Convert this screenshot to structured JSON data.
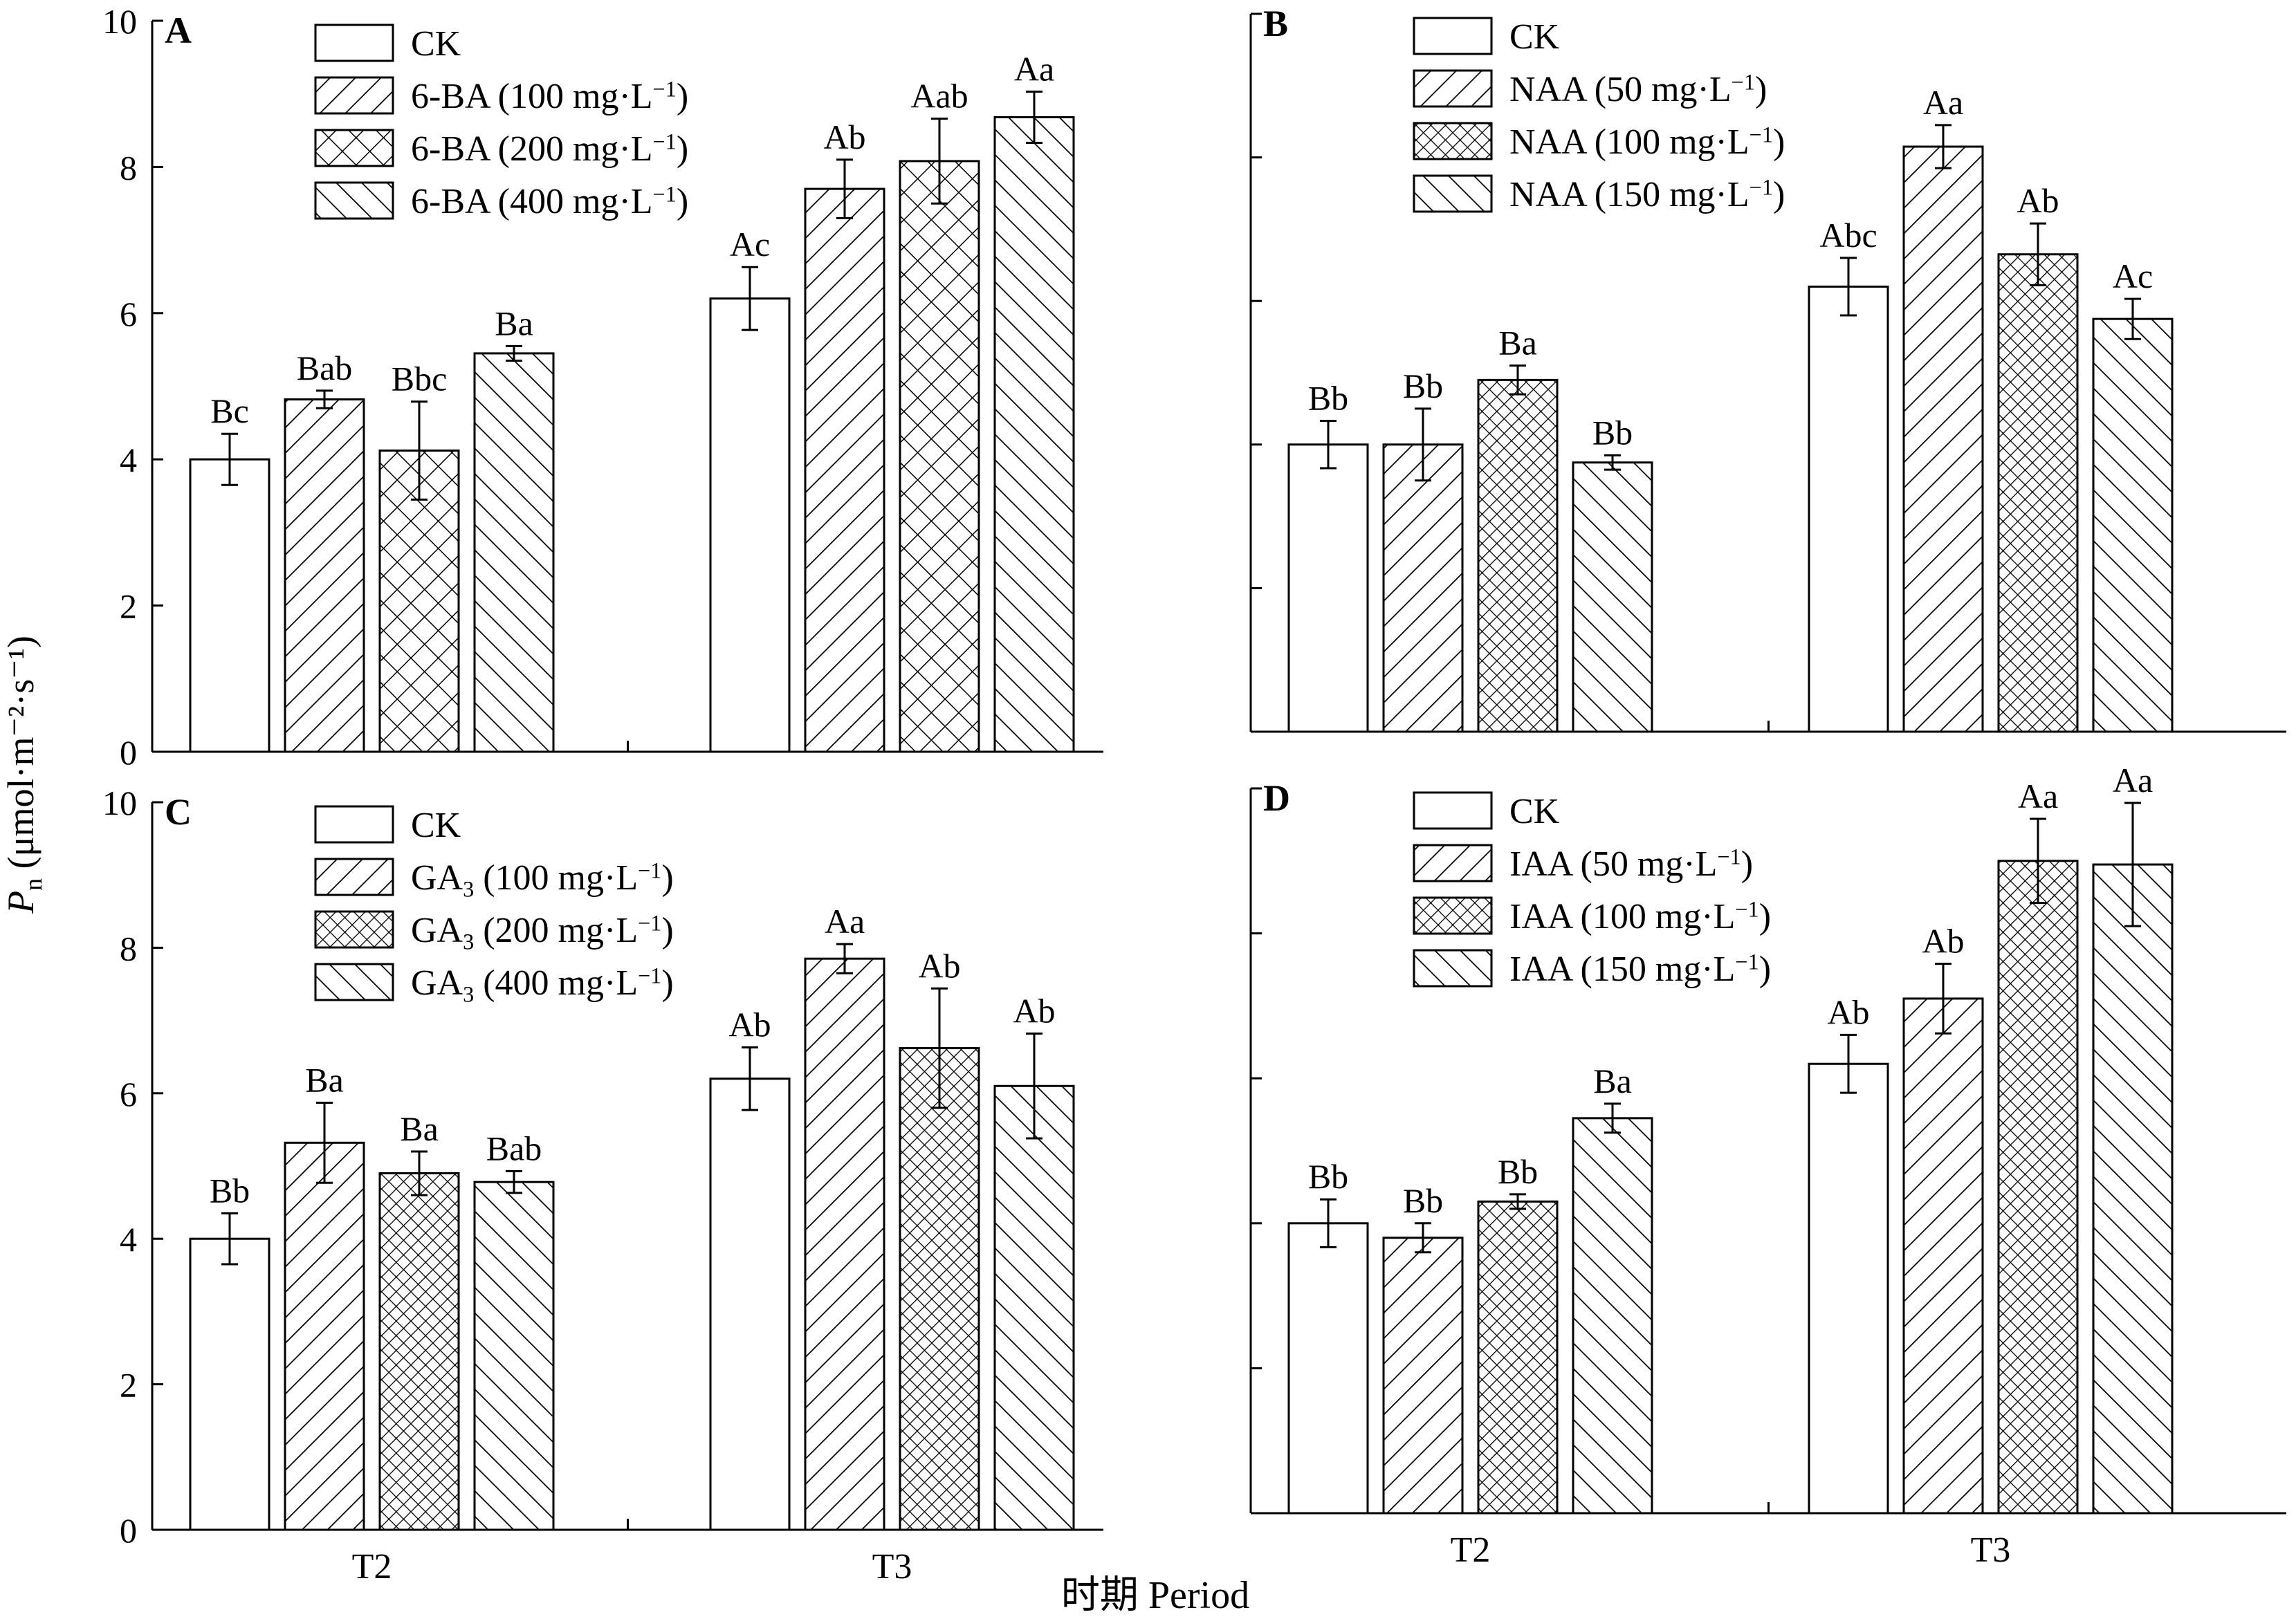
{
  "colors": {
    "ink": "#000000",
    "bar_fill": "#ffffff"
  },
  "y_axis_label_italic": "P",
  "y_axis_label_subscript": "n",
  "y_axis_label_unit": " (μmol·m⁻²·s⁻¹)",
  "x_axis_label": "时期 Period",
  "chart_data": [
    {
      "panel_label": "A",
      "type": "bar",
      "categories": [
        "T2",
        "T3"
      ],
      "ylim": [
        0,
        10
      ],
      "yticks": [
        0,
        2,
        4,
        6,
        8,
        10
      ],
      "ytick_labels_shown": true,
      "legend_position": "top-left",
      "series": [
        {
          "name": "CK",
          "pattern": "blank",
          "values": [
            4.0,
            6.2
          ],
          "errors": [
            0.35,
            0.43
          ],
          "labels": [
            "Bc",
            "Ac"
          ]
        },
        {
          "name": "6-BA (100 mg·L⁻¹)",
          "pattern": "diag",
          "values": [
            4.82,
            7.7
          ],
          "errors": [
            0.12,
            0.4
          ],
          "labels": [
            "Bab",
            "Ab"
          ]
        },
        {
          "name": "6-BA (200 mg·L⁻¹)",
          "pattern": "cross",
          "values": [
            4.12,
            8.08
          ],
          "errors": [
            0.67,
            0.58
          ],
          "labels": [
            "Bbc",
            "Aab"
          ]
        },
        {
          "name": "6-BA (400 mg·L⁻¹)",
          "pattern": "backdiag",
          "values": [
            5.45,
            8.68
          ],
          "errors": [
            0.1,
            0.35
          ],
          "labels": [
            "Ba",
            "Aa"
          ]
        }
      ]
    },
    {
      "panel_label": "B",
      "type": "bar",
      "categories": [
        "T2",
        "T3"
      ],
      "ylim": [
        0,
        10
      ],
      "yticks": [
        0,
        2,
        4,
        6,
        8,
        10
      ],
      "ytick_labels_shown": false,
      "legend_position": "top-left",
      "series": [
        {
          "name": "CK",
          "pattern": "blank",
          "values": [
            4.0,
            6.2
          ],
          "errors": [
            0.33,
            0.4
          ],
          "labels": [
            "Bb",
            "Abc"
          ]
        },
        {
          "name": "NAA (50 mg·L⁻¹)",
          "pattern": "diag",
          "values": [
            4.0,
            8.15
          ],
          "errors": [
            0.5,
            0.3
          ],
          "labels": [
            "Bb",
            "Aa"
          ]
        },
        {
          "name": "NAA (100 mg·L⁻¹)",
          "pattern": "dense",
          "values": [
            4.9,
            6.65
          ],
          "errors": [
            0.2,
            0.43
          ],
          "labels": [
            "Ba",
            "Ab"
          ]
        },
        {
          "name": "NAA (150 mg·L⁻¹)",
          "pattern": "backdiag",
          "values": [
            3.75,
            5.75
          ],
          "errors": [
            0.1,
            0.28
          ],
          "labels": [
            "Bb",
            "Ac"
          ]
        }
      ]
    },
    {
      "panel_label": "C",
      "type": "bar",
      "categories": [
        "T2",
        "T3"
      ],
      "ylim": [
        0,
        10
      ],
      "yticks": [
        0,
        2,
        4,
        6,
        8,
        10
      ],
      "ytick_labels_shown": true,
      "legend_position": "top-left",
      "series": [
        {
          "name": "CK",
          "pattern": "blank",
          "values": [
            4.0,
            6.2
          ],
          "errors": [
            0.35,
            0.43
          ],
          "labels": [
            "Bb",
            "Ab"
          ]
        },
        {
          "name": "GA₃ (100 mg·L⁻¹)",
          "pattern": "diag",
          "values": [
            5.32,
            7.85
          ],
          "errors": [
            0.55,
            0.2
          ],
          "labels": [
            "Ba",
            "Aa"
          ]
        },
        {
          "name": "GA₃ (200 mg·L⁻¹)",
          "pattern": "dense",
          "values": [
            4.9,
            6.62
          ],
          "errors": [
            0.3,
            0.82
          ],
          "labels": [
            "Ba",
            "Ab"
          ]
        },
        {
          "name": "GA₃ (400 mg·L⁻¹)",
          "pattern": "backdiag",
          "values": [
            4.78,
            6.1
          ],
          "errors": [
            0.15,
            0.72
          ],
          "labels": [
            "Bab",
            "Ab"
          ]
        }
      ]
    },
    {
      "panel_label": "D",
      "type": "bar",
      "categories": [
        "T2",
        "T3"
      ],
      "ylim": [
        0,
        10
      ],
      "yticks": [
        0,
        2,
        4,
        6,
        8,
        10
      ],
      "ytick_labels_shown": false,
      "legend_position": "top-left",
      "series": [
        {
          "name": "CK",
          "pattern": "blank",
          "values": [
            4.0,
            6.2
          ],
          "errors": [
            0.33,
            0.4
          ],
          "labels": [
            "Bb",
            "Ab"
          ]
        },
        {
          "name": "IAA (50 mg·L⁻¹)",
          "pattern": "diag",
          "values": [
            3.8,
            7.1
          ],
          "errors": [
            0.2,
            0.48
          ],
          "labels": [
            "Bb",
            "Ab"
          ]
        },
        {
          "name": "IAA (100 mg·L⁻¹)",
          "pattern": "dense",
          "values": [
            4.3,
            9.0
          ],
          "errors": [
            0.1,
            0.58
          ],
          "labels": [
            "Bb",
            "Aa"
          ]
        },
        {
          "name": "IAA (150 mg·L⁻¹)",
          "pattern": "backdiag",
          "values": [
            5.45,
            8.95
          ],
          "errors": [
            0.2,
            0.85
          ],
          "labels": [
            "Ba",
            "Aa"
          ]
        }
      ]
    }
  ]
}
